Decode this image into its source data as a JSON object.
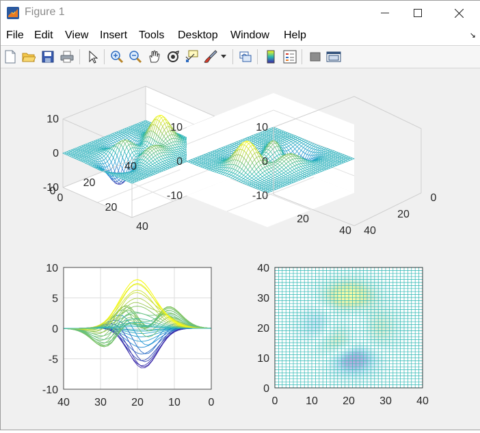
{
  "window": {
    "title": "Figure 1",
    "menu": [
      "File",
      "Edit",
      "View",
      "Insert",
      "Tools",
      "Desktop",
      "Window",
      "Help"
    ]
  },
  "toolbar": {
    "buttons": [
      "new-figure-icon",
      "open-file-icon",
      "save-icon",
      "print-icon",
      "edit-plot-arrow-icon",
      "zoom-in-icon",
      "zoom-out-icon",
      "pan-hand-icon",
      "rotate-3d-icon",
      "data-cursor-icon",
      "brush-icon",
      "brush-dropdown-icon",
      "link-plot-icon",
      "colorbar-icon",
      "legend-icon",
      "hide-plot-tools-icon",
      "show-plot-tools-icon"
    ]
  },
  "colors": {
    "figure_bg": "#f0f0f0",
    "axes_bg": "#ffffff",
    "mesh_colormap": [
      "#3e26a8",
      "#1e92d6",
      "#2bb7b3",
      "#9fc848",
      "#f9fb15"
    ]
  },
  "chart_data": [
    {
      "type": "surface",
      "plot": "mesh(peaks)",
      "view": "default 3-D",
      "z_ticks": [
        "10",
        "0",
        "-10"
      ],
      "x_ticks": [
        "0",
        "20",
        "40"
      ],
      "y_ticks": [
        "0",
        "20",
        "40"
      ],
      "zlim": [
        -10,
        10
      ],
      "xlim": [
        0,
        40
      ],
      "ylim": [
        0,
        40
      ]
    },
    {
      "type": "surface",
      "plot": "mesh(peaks)",
      "view": "rotated 3-D",
      "z_ticks": [
        "10",
        "0",
        "-10"
      ],
      "x_ticks": [
        "0",
        "20",
        "40"
      ],
      "y_ticks": [
        "20",
        "40"
      ],
      "zlim": [
        -10,
        10
      ],
      "xlim": [
        0,
        40
      ],
      "ylim": [
        0,
        40
      ]
    },
    {
      "type": "line",
      "plot": "mesh(peaks) side view",
      "y_ticks": [
        "10",
        "5",
        "0",
        "-5",
        "-10"
      ],
      "x_ticks": [
        "40",
        "30",
        "20",
        "10",
        "0"
      ],
      "xlim": [
        40,
        0
      ],
      "ylim": [
        -10,
        10
      ],
      "grid": true,
      "peaks": {
        "max_at_x": 20,
        "max_value": 8,
        "min_at_x": 22,
        "min_value": -6.5,
        "secondary_max_at_x": 29,
        "secondary_max_value": 3.5,
        "secondary_min_at_x": 12,
        "secondary_min_value": -3
      }
    },
    {
      "type": "heatmap",
      "plot": "mesh(peaks) top view",
      "y_ticks": [
        "40",
        "30",
        "20",
        "10",
        "0"
      ],
      "x_ticks": [
        "0",
        "10",
        "20",
        "30",
        "40"
      ],
      "xlim": [
        0,
        40
      ],
      "ylim": [
        0,
        40
      ]
    }
  ]
}
